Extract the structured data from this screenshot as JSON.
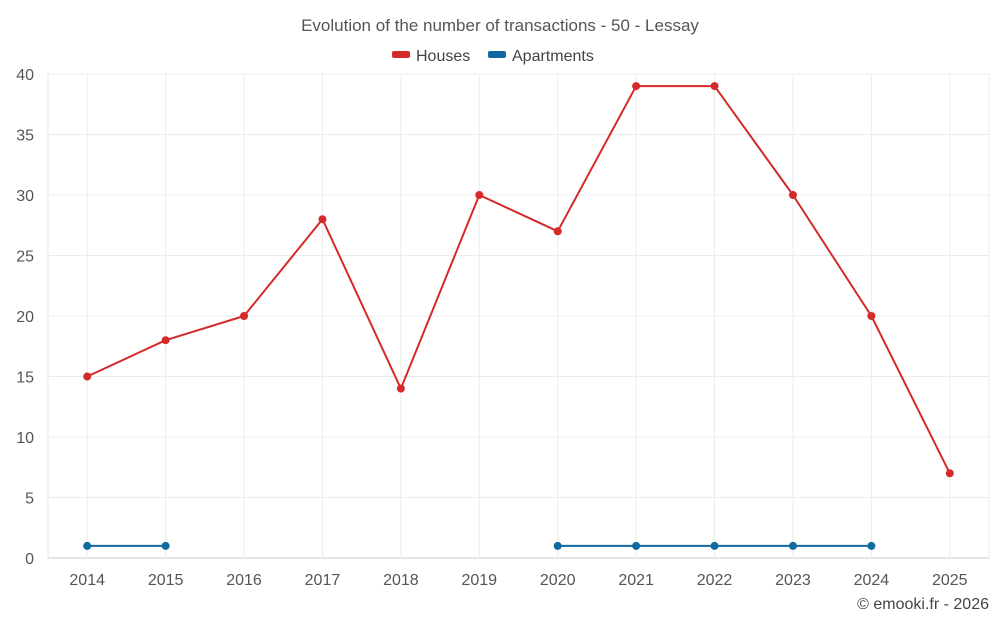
{
  "chart_data": {
    "type": "line",
    "title": "Evolution of the number of transactions - 50 - Lessay",
    "categories": [
      "2014",
      "2015",
      "2016",
      "2017",
      "2018",
      "2019",
      "2020",
      "2021",
      "2022",
      "2023",
      "2024",
      "2025"
    ],
    "ylim": [
      0,
      40
    ],
    "yticks": [
      0,
      5,
      10,
      15,
      20,
      25,
      30,
      35,
      40
    ],
    "grid": true,
    "legend": "top-center",
    "series": [
      {
        "name": "Houses",
        "color": "#d42a2a",
        "values": [
          15,
          18,
          20,
          28,
          14,
          30,
          27,
          39,
          39,
          30,
          20,
          7
        ]
      },
      {
        "name": "Apartments",
        "color": "#0e6aa0",
        "values": [
          1,
          1,
          null,
          null,
          null,
          null,
          1,
          1,
          1,
          1,
          1,
          null
        ]
      }
    ],
    "credit": "© emooki.fr - 2026"
  }
}
